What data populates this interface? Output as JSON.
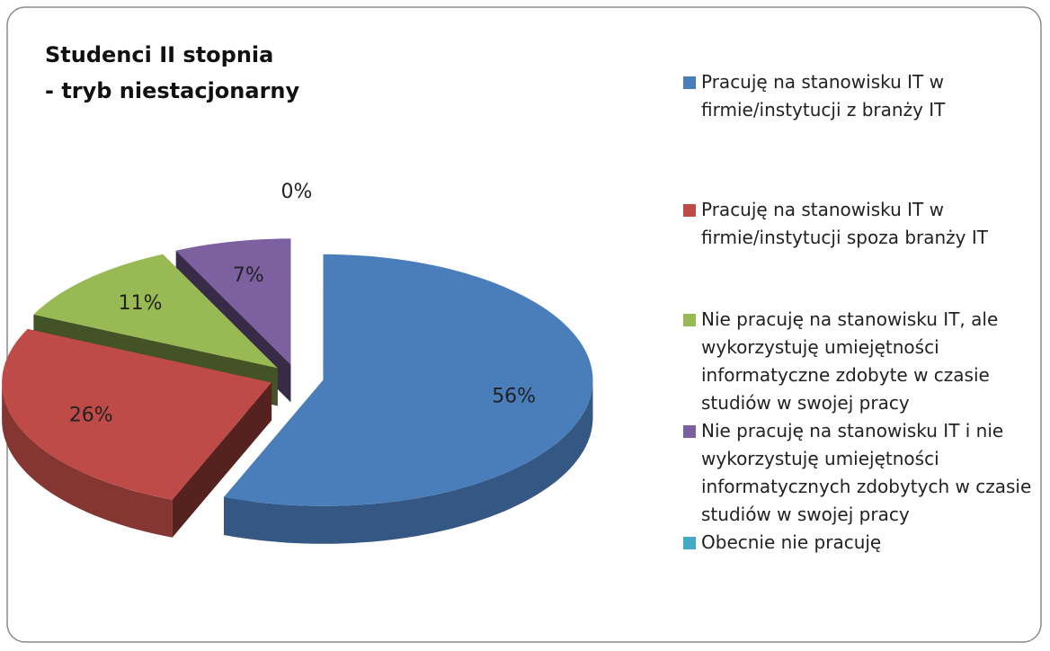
{
  "chart_data": {
    "type": "pie3d",
    "title": [
      "Studenci II stopnia",
      "- tryb niestacjonarny"
    ],
    "categories": [
      "Pracuję na stanowisku IT w firmie/instytucji z branży IT",
      "Pracuję na stanowisku IT w firmie/instytucji spoza branży IT",
      "Nie pracuję na stanowisku IT, ale wykorzystuję umiejętności informatyczne zdobyte w czasie studiów w swojej pracy",
      "Nie pracuję na stanowisku IT i nie wykorzystuję umiejętności informatycznych zdobytych w czasie studiów w swojej pracy",
      "Obecnie nie pracuję"
    ],
    "values": [
      56,
      26,
      11,
      7,
      0
    ],
    "value_labels": [
      "56%",
      "26%",
      "11%",
      "7%",
      "0%"
    ],
    "colors": [
      "#4a7ebb",
      "#be4b48",
      "#98b954",
      "#7d60a0",
      "#46aac5"
    ],
    "legend": "right"
  }
}
